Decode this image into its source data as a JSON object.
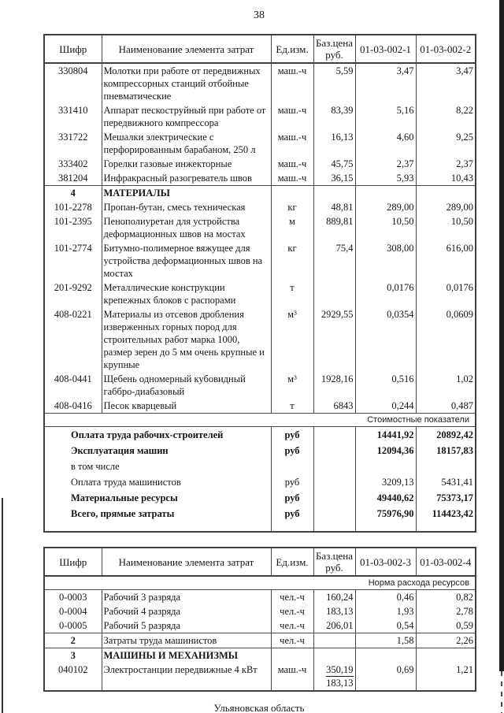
{
  "page": {
    "number": "38",
    "footer": "Ульяновская область"
  },
  "tables": [
    {
      "headers": [
        "Шифр",
        "Наименование элемента затрат",
        "Ед.изм.",
        "Баз.цена\nруб.",
        "01-03-002-1",
        "01-03-002-2"
      ],
      "rows": [
        {
          "type": "item",
          "code": "330804",
          "name": "Молотки при работе от передвижных компрессорных станций отбойные пневматические",
          "unit": "маш.-ч",
          "base": "5,59",
          "v1": "3,47",
          "v2": "3,47"
        },
        {
          "type": "item",
          "code": "331410",
          "name": "Аппарат пескоструйный при работе от передвижного компрессора",
          "unit": "маш.-ч",
          "base": "83,39",
          "v1": "5,16",
          "v2": "8,22"
        },
        {
          "type": "item",
          "code": "331722",
          "name": "Мешалки электрические с перфорированным барабаном, 250 л",
          "unit": "маш.-ч",
          "base": "16,13",
          "v1": "4,60",
          "v2": "9,25"
        },
        {
          "type": "item",
          "code": "333402",
          "name": "Горелки газовые инжекторные",
          "unit": "маш.-ч",
          "base": "45,75",
          "v1": "2,37",
          "v2": "2,37"
        },
        {
          "type": "item",
          "code": "381204",
          "name": "Инфракрасный разогреватель швов",
          "unit": "маш.-ч",
          "base": "36,15",
          "v1": "5,93",
          "v2": "10,43"
        },
        {
          "type": "section",
          "code": "4",
          "name": "МАТЕРИАЛЫ"
        },
        {
          "type": "item",
          "code": "101-2278",
          "name": "Пропан-бутан, смесь техническая",
          "unit": "кг",
          "base": "48,81",
          "v1": "289,00",
          "v2": "289,00"
        },
        {
          "type": "item",
          "code": "101-2395",
          "name": "Пенополиуретан для устройства деформационных швов на мостах",
          "unit": "м",
          "base": "889,81",
          "v1": "10,50",
          "v2": "10,50"
        },
        {
          "type": "item",
          "code": "101-2774",
          "name": "Битумно-полимерное вяжущее для устройства деформационных швов на мостах",
          "unit": "кг",
          "base": "75,4",
          "v1": "308,00",
          "v2": "616,00"
        },
        {
          "type": "item",
          "code": "201-9292",
          "name": "Металлические конструкции крепежных блоков с распорами",
          "unit": "т",
          "base": "",
          "v1": "0,0176",
          "v2": "0,0176"
        },
        {
          "type": "item",
          "code": "408-0221",
          "name": "Материалы из отсевов дробления изверженных горных пород для строительных работ марка 1000, размер зерен до 5 мм очень крупные и крупные",
          "unit": "м³",
          "base": "2929,55",
          "v1": "0,0354",
          "v2": "0,0609"
        },
        {
          "type": "item",
          "code": "408-0441",
          "name": "Щебень одномерный кубовидный габбро-диабазовый",
          "unit": "м³",
          "base": "1928,16",
          "v1": "0,516",
          "v2": "1,02"
        },
        {
          "type": "item",
          "code": "408-0416",
          "name": "Песок кварцевый",
          "unit": "т",
          "base": "6843",
          "v1": "0,244",
          "v2": "0,487"
        },
        {
          "type": "band",
          "label": "Стоимостные показатели"
        },
        {
          "type": "summary",
          "name": "Оплата труда рабочих-строителей",
          "unit": "руб",
          "v1": "14441,92",
          "v2": "20892,42",
          "bold": true
        },
        {
          "type": "summary",
          "name": "Эксплуатация машин",
          "unit": "руб",
          "v1": "12094,36",
          "v2": "18157,83",
          "bold": true
        },
        {
          "type": "summary",
          "name": "в том числе",
          "unit": "",
          "v1": "",
          "v2": "",
          "bold": false
        },
        {
          "type": "summary",
          "name": "Оплата труда машинистов",
          "unit": "руб",
          "v1": "3209,13",
          "v2": "5431,41",
          "bold": false
        },
        {
          "type": "summary",
          "name": "Материальные ресурсы",
          "unit": "руб",
          "v1": "49440,62",
          "v2": "75373,17",
          "bold": true
        },
        {
          "type": "summary",
          "name": "Всего, прямые затраты",
          "unit": "руб",
          "v1": "75976,90",
          "v2": "114423,42",
          "bold": true
        },
        {
          "type": "spacer"
        }
      ]
    },
    {
      "headers": [
        "Шифр",
        "Наименование элемента затрат",
        "Ед.изм.",
        "Баз.цена\nруб.",
        "01-03-002-3",
        "01-03-002-4"
      ],
      "rows": [
        {
          "type": "band",
          "label": "Норма расхода ресурсов"
        },
        {
          "type": "item",
          "code": "0-0003",
          "name": "Рабочий 3 разряда",
          "unit": "чел.-ч",
          "base": "160,24",
          "v1": "0,46",
          "v2": "0,82"
        },
        {
          "type": "item",
          "code": "0-0004",
          "name": "Рабочий 4 разряда",
          "unit": "чел.-ч",
          "base": "183,13",
          "v1": "1,93",
          "v2": "2,78"
        },
        {
          "type": "item",
          "code": "0-0005",
          "name": "Рабочий 5 разряда",
          "unit": "чел.-ч",
          "base": "206,01",
          "v1": "0,54",
          "v2": "0,59"
        },
        {
          "type": "item",
          "code": "2",
          "name": "Затраты труда машинистов",
          "unit": "чел.-ч",
          "base": "",
          "v1": "1,58",
          "v2": "2,26",
          "topline": true,
          "codeBold": true
        },
        {
          "type": "section",
          "code": "3",
          "name": "МАШИНЫ И МЕХАНИЗМЫ"
        },
        {
          "type": "item",
          "code": "040102",
          "name": "Электростанции передвижные 4 кВт",
          "unit": "маш.-ч",
          "base": [
            "350,19",
            "183,13"
          ],
          "v1": "0,69",
          "v2": "1,21"
        }
      ]
    }
  ]
}
